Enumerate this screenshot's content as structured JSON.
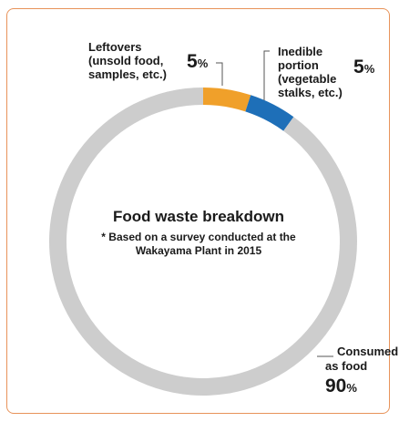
{
  "chart_data": {
    "type": "pie",
    "style": "donut",
    "title": "Food waste breakdown",
    "note": "* Based on a survey conducted at the Wakayama Plant in 2015",
    "slices": [
      {
        "label_lines": [
          "Leftovers",
          "(unsold food,",
          "samples, etc.)"
        ],
        "value": 5,
        "value_text": "5",
        "unit": "%",
        "color": "#f0a02a"
      },
      {
        "label_lines": [
          "Inedible",
          "portion",
          "(vegetable",
          "stalks, etc.)"
        ],
        "value": 5,
        "value_text": "5",
        "unit": "%",
        "color": "#1e6fb8"
      },
      {
        "label_lines": [
          "Consumed",
          "as food"
        ],
        "value": 90,
        "value_text": "90",
        "unit": "%",
        "color": "#cdcdcd"
      }
    ],
    "start_angle_deg": 0,
    "direction": "clockwise"
  },
  "colors": {
    "frame_border": "#e8935a",
    "leader_line": "#555555"
  }
}
